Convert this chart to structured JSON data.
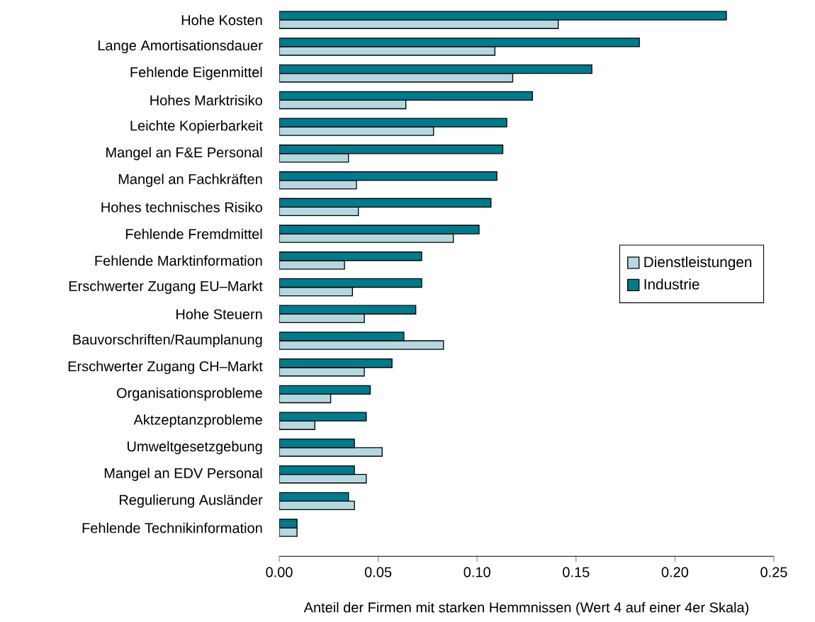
{
  "chart_data": {
    "type": "bar",
    "orientation": "horizontal",
    "xlabel": "Anteil der Firmen mit starken Hemmnissen (Wert 4 auf einer 4er Skala)",
    "categories": [
      "Hohe Kosten",
      "Lange Amortisationsdauer",
      "Fehlende Eigenmittel",
      "Hohes Marktrisiko",
      "Leichte Kopierbarkeit",
      "Mangel an F&E Personal",
      "Mangel an Fachkräften",
      "Hohes technisches Risiko",
      "Fehlende Fremdmittel",
      "Fehlende Marktinformation",
      "Erschwerter Zugang EU–Markt",
      "Hohe Steuern",
      "Bauvorschriften/Raumplanung",
      "Erschwerter Zugang CH–Markt",
      "Organisationsprobleme",
      "Aktzeptanzprobleme",
      "Umweltgesetzgebung",
      "Mangel an EDV Personal",
      "Regulierung Ausländer",
      "Fehlende Technikinformation"
    ],
    "series": [
      {
        "name": "Dienstleistungen",
        "color": "#b4d8e0",
        "values": [
          0.141,
          0.109,
          0.118,
          0.064,
          0.078,
          0.035,
          0.039,
          0.04,
          0.088,
          0.033,
          0.037,
          0.043,
          0.083,
          0.043,
          0.026,
          0.018,
          0.052,
          0.044,
          0.038,
          0.009
        ]
      },
      {
        "name": "Industrie",
        "color": "#007a8c",
        "values": [
          0.226,
          0.182,
          0.158,
          0.128,
          0.115,
          0.113,
          0.11,
          0.107,
          0.101,
          0.072,
          0.072,
          0.069,
          0.063,
          0.057,
          0.046,
          0.044,
          0.038,
          0.038,
          0.035,
          0.009
        ]
      }
    ],
    "xlim": [
      0,
      0.25
    ],
    "xticks": [
      {
        "value": 0,
        "label": "0.00"
      },
      {
        "value": 0.05,
        "label": "0.05"
      },
      {
        "value": 0.1,
        "label": "0.10"
      },
      {
        "value": 0.15,
        "label": "0.15"
      },
      {
        "value": 0.2,
        "label": "0.20"
      },
      {
        "value": 0.25,
        "label": "0.25"
      }
    ],
    "legend": "right",
    "grid": false
  }
}
